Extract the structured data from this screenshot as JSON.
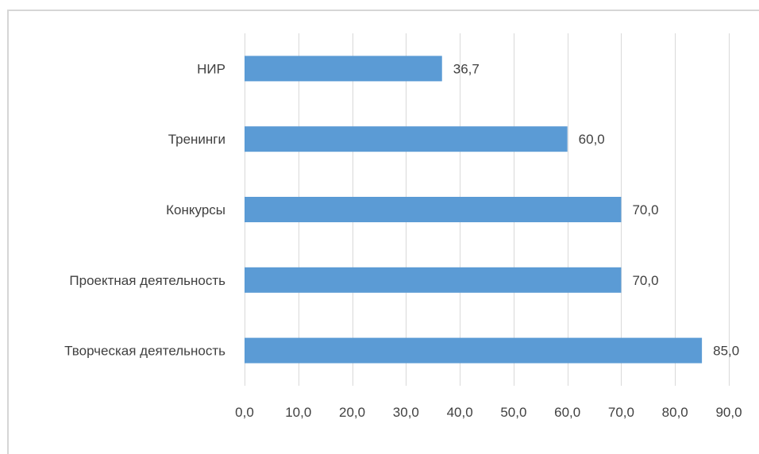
{
  "chart_data": {
    "type": "bar",
    "orientation": "horizontal",
    "categories": [
      "НИР",
      "Тренинги",
      "Конкурсы",
      "Проектная деятельность",
      "Творческая деятельность"
    ],
    "values": [
      36.7,
      60.0,
      70.0,
      70.0,
      85.0
    ],
    "value_labels": [
      "36,7",
      "60,0",
      "70,0",
      "70,0",
      "85,0"
    ],
    "xlim": [
      0,
      90
    ],
    "ticks": [
      0,
      10,
      20,
      30,
      40,
      50,
      60,
      70,
      80,
      90
    ],
    "tick_labels": [
      "0,0",
      "10,0",
      "20,0",
      "30,0",
      "40,0",
      "50,0",
      "60,0",
      "70,0",
      "80,0",
      "90,0"
    ],
    "title": "",
    "xlabel": "",
    "ylabel": "",
    "grid": true,
    "legend": "none",
    "bar_color": "#5b9bd5"
  }
}
